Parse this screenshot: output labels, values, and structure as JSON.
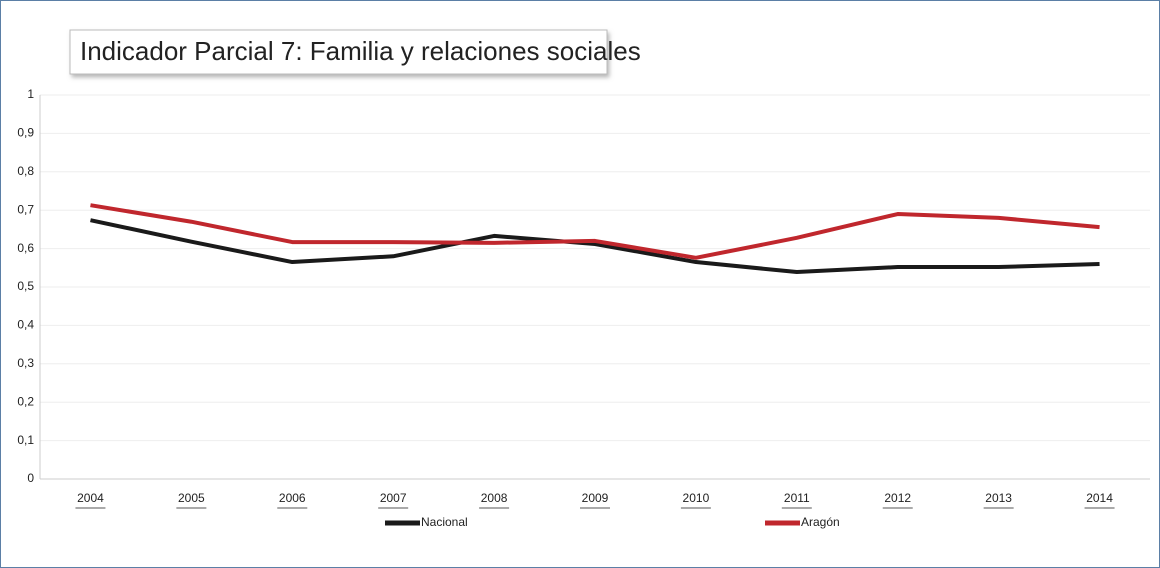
{
  "chart_data": {
    "type": "line",
    "title": "Indicador Parcial 7: Familia y relaciones sociales",
    "categories": [
      "2004",
      "2005",
      "2006",
      "2007",
      "2008",
      "2009",
      "2010",
      "2011",
      "2012",
      "2013",
      "2014"
    ],
    "series": [
      {
        "name": "Nacional",
        "color": "#1a1a1a",
        "values": [
          0.674,
          0.618,
          0.565,
          0.58,
          0.633,
          0.612,
          0.565,
          0.539,
          0.552,
          0.552,
          0.56
        ]
      },
      {
        "name": "Aragón",
        "color": "#c0272d",
        "values": [
          0.713,
          0.67,
          0.617,
          0.617,
          0.615,
          0.62,
          0.576,
          0.628,
          0.69,
          0.68,
          0.656
        ]
      }
    ],
    "ylim": [
      0,
      1
    ],
    "yticks": [
      0,
      {
        "value": 0.1,
        "label": "0,1"
      },
      {
        "value": 0.2,
        "label": "0,2"
      },
      {
        "value": 0.3,
        "label": "0,3"
      },
      {
        "value": 0.4,
        "label": "0,4"
      },
      {
        "value": 0.5,
        "label": "0,5"
      },
      {
        "value": 0.6,
        "label": "0,6"
      },
      {
        "value": 0.7,
        "label": "0,7"
      },
      {
        "value": 0.8,
        "label": "0,8"
      },
      {
        "value": 0.9,
        "label": "0,9"
      },
      1
    ],
    "grid": true,
    "legend": "bottom"
  }
}
